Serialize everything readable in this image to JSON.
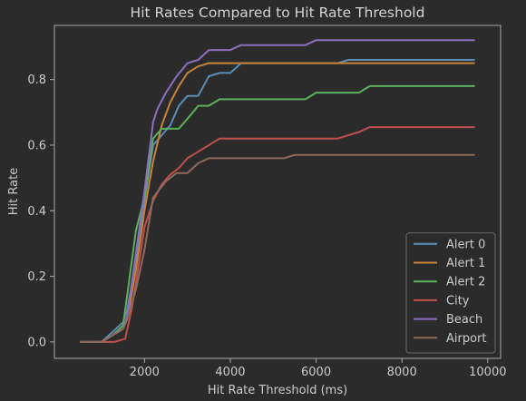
{
  "chart_data": {
    "type": "line",
    "title": "Hit Rates Compared to Hit Rate Threshold",
    "xlabel": "Hit Rate Threshold (ms)",
    "ylabel": "Hit Rate",
    "xlim": [
      -100,
      10300
    ],
    "ylim": [
      -0.05,
      0.965
    ],
    "xticks": [
      2000,
      4000,
      6000,
      8000,
      10000
    ],
    "yticks": [
      0.0,
      0.2,
      0.4,
      0.6,
      0.8
    ],
    "xtick_labels": [
      "2000",
      "4000",
      "6000",
      "8000",
      "10000"
    ],
    "ytick_labels": [
      "0.0",
      "0.2",
      "0.4",
      "0.6",
      "0.8"
    ],
    "legend_position": "lower-right",
    "background": "#2b2b2b",
    "axes_color": "#aaaaaa",
    "text_color": "#cccccc",
    "series": [
      {
        "name": "Alert 0",
        "color": "#5b8db5",
        "x": [
          500,
          800,
          1000,
          1250,
          1500,
          1600,
          1800,
          2000,
          2200,
          2400,
          2600,
          2800,
          3000,
          3250,
          3500,
          3750,
          4000,
          4250,
          4500,
          5000,
          5500,
          6000,
          6500,
          6750,
          7000,
          7500,
          8000,
          9000,
          9700
        ],
        "y": [
          0.0,
          0.0,
          0.0,
          0.03,
          0.06,
          0.1,
          0.25,
          0.43,
          0.6,
          0.63,
          0.66,
          0.72,
          0.75,
          0.75,
          0.81,
          0.82,
          0.82,
          0.85,
          0.85,
          0.85,
          0.85,
          0.85,
          0.85,
          0.86,
          0.86,
          0.86,
          0.86,
          0.86,
          0.86
        ]
      },
      {
        "name": "Alert 1",
        "color": "#c8823a",
        "x": [
          500,
          800,
          1000,
          1250,
          1500,
          1600,
          1800,
          2000,
          2200,
          2400,
          2600,
          2800,
          3000,
          3250,
          3500,
          3750,
          4000,
          4500,
          5000,
          6000,
          7000,
          8000,
          9000,
          9700
        ],
        "y": [
          0.0,
          0.0,
          0.0,
          0.02,
          0.04,
          0.07,
          0.22,
          0.4,
          0.55,
          0.66,
          0.73,
          0.78,
          0.82,
          0.84,
          0.85,
          0.85,
          0.85,
          0.85,
          0.85,
          0.85,
          0.85,
          0.85,
          0.85,
          0.85
        ]
      },
      {
        "name": "Alert 2",
        "color": "#5bb05b",
        "x": [
          500,
          800,
          1000,
          1250,
          1500,
          1800,
          2000,
          2200,
          2400,
          2600,
          2800,
          3000,
          3250,
          3500,
          3750,
          4000,
          4500,
          5000,
          5500,
          5750,
          6000,
          6500,
          7000,
          7250,
          7500,
          8000,
          9000,
          9700
        ],
        "y": [
          0.0,
          0.0,
          0.0,
          0.02,
          0.05,
          0.34,
          0.44,
          0.62,
          0.65,
          0.65,
          0.65,
          0.68,
          0.72,
          0.72,
          0.74,
          0.74,
          0.74,
          0.74,
          0.74,
          0.74,
          0.76,
          0.76,
          0.76,
          0.78,
          0.78,
          0.78,
          0.78,
          0.78
        ]
      },
      {
        "name": "City",
        "color": "#c0504d",
        "x": [
          500,
          800,
          1000,
          1300,
          1550,
          1700,
          1800,
          2000,
          2200,
          2400,
          2600,
          2800,
          3000,
          3250,
          3500,
          3750,
          4000,
          4500,
          5000,
          5500,
          6000,
          6500,
          6750,
          7000,
          7250,
          7500,
          8000,
          9000,
          9700
        ],
        "y": [
          0.0,
          0.0,
          0.0,
          0.0,
          0.01,
          0.1,
          0.18,
          0.35,
          0.43,
          0.48,
          0.51,
          0.53,
          0.56,
          0.58,
          0.6,
          0.62,
          0.62,
          0.62,
          0.62,
          0.62,
          0.62,
          0.62,
          0.63,
          0.64,
          0.655,
          0.655,
          0.655,
          0.655,
          0.655
        ]
      },
      {
        "name": "Beach",
        "color": "#8c6fbf",
        "x": [
          500,
          800,
          1000,
          1250,
          1500,
          1600,
          1800,
          2000,
          2200,
          2300,
          2500,
          2750,
          3000,
          3250,
          3500,
          3750,
          4000,
          4250,
          4500,
          5000,
          5500,
          5750,
          6000,
          7000,
          8000,
          9000,
          9700
        ],
        "y": [
          0.0,
          0.0,
          0.0,
          0.02,
          0.04,
          0.08,
          0.27,
          0.46,
          0.67,
          0.71,
          0.76,
          0.81,
          0.85,
          0.86,
          0.89,
          0.89,
          0.89,
          0.905,
          0.905,
          0.905,
          0.905,
          0.905,
          0.92,
          0.92,
          0.92,
          0.92,
          0.92
        ]
      },
      {
        "name": "Airport",
        "color": "#8c6b5e",
        "x": [
          500,
          800,
          1000,
          1250,
          1500,
          1600,
          1800,
          2000,
          2200,
          2500,
          2750,
          3000,
          3250,
          3500,
          3750,
          4000,
          4500,
          5000,
          5250,
          5500,
          6000,
          7000,
          8000,
          9000,
          9700
        ],
        "y": [
          0.0,
          0.0,
          0.0,
          0.02,
          0.04,
          0.07,
          0.16,
          0.28,
          0.44,
          0.49,
          0.515,
          0.515,
          0.545,
          0.56,
          0.56,
          0.56,
          0.56,
          0.56,
          0.56,
          0.57,
          0.57,
          0.57,
          0.57,
          0.57,
          0.57
        ]
      }
    ]
  }
}
